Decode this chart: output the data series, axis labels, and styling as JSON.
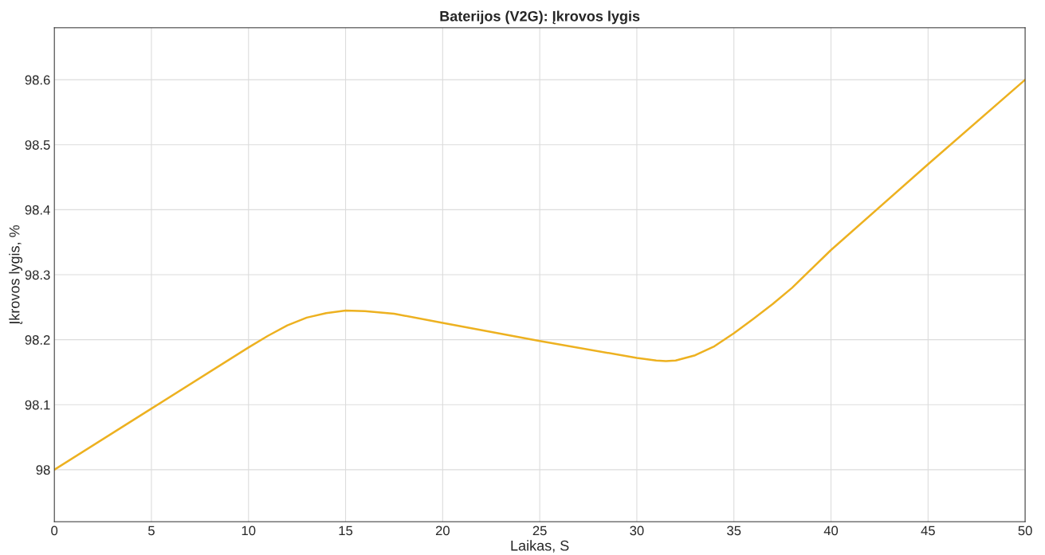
{
  "chart_data": {
    "type": "line",
    "title": "Baterijos (V2G): Įkrovos lygis",
    "xlabel": "Laikas, S",
    "ylabel": "Įkrovos lygis, %",
    "x": [
      0,
      5,
      10,
      11,
      12,
      13,
      14,
      15,
      16,
      17.5,
      20,
      25,
      30,
      31,
      31.5,
      32,
      33,
      34,
      35,
      36,
      37,
      38,
      40,
      45,
      50
    ],
    "series": [
      {
        "color": "#edb120",
        "values": [
          98.0,
          98.094,
          98.188,
          98.206,
          98.222,
          98.234,
          98.241,
          98.245,
          98.244,
          98.24,
          98.226,
          98.198,
          98.172,
          98.168,
          98.167,
          98.168,
          98.176,
          98.19,
          98.21,
          98.232,
          98.255,
          98.28,
          98.338,
          98.47,
          98.6
        ]
      }
    ],
    "xlim": [
      0,
      50
    ],
    "xticks": [
      0,
      5,
      10,
      15,
      20,
      25,
      30,
      35,
      40,
      45,
      50
    ],
    "ylim": [
      97.92,
      98.68
    ],
    "yticks": [
      98,
      98.1,
      98.2,
      98.3,
      98.4,
      98.5,
      98.6
    ],
    "grid": true,
    "marker": "none",
    "line_style": "solid"
  }
}
